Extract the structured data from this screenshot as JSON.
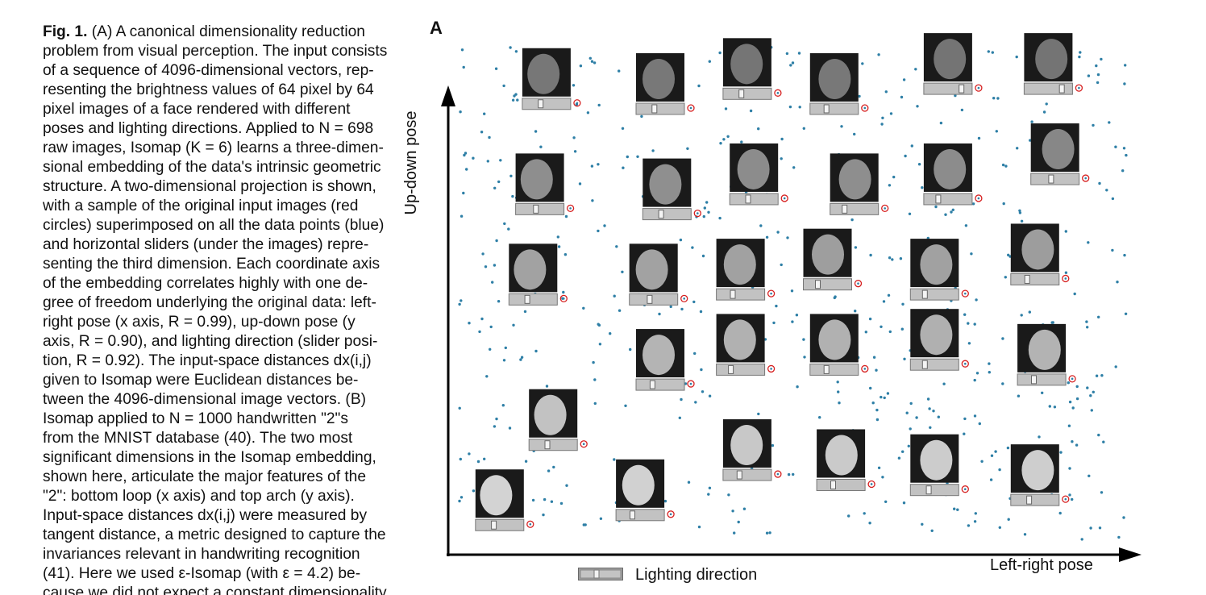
{
  "caption": {
    "lines": [
      "Fig. 1. (A) A canonical dimensionality reduction",
      "problem from visual perception. The input consists",
      "of a sequence of 4096-dimensional vectors, rep-",
      "resenting the brightness values of 64 pixel by 64",
      "pixel images of a face rendered with different",
      "poses and lighting directions. Applied to N = 698",
      "raw images, Isomap (K = 6) learns a three-dimen-",
      "sional embedding of the data's intrinsic geometric",
      "structure. A two-dimensional projection is shown,",
      "with a sample of the original input images (red",
      "circles) superimposed on all the data points (blue)",
      "and horizontal sliders (under the images) repre-",
      "senting the third dimension. Each coordinate axis",
      "of the embedding correlates highly with one de-",
      "gree of freedom underlying the original data: left-",
      "right pose (x axis, R = 0.99), up-down pose (y",
      "axis, R = 0.90), and lighting direction (slider posi-",
      "tion, R = 0.92). The input-space distances dx(i,j)",
      "given to Isomap were Euclidean distances be-",
      "tween the 4096-dimensional image vectors. (B)",
      "Isomap applied to N = 1000 handwritten \"2\"s",
      "from the MNIST database (40). The two most",
      "significant dimensions in the Isomap embedding,",
      "shown here, articulate the major features of the",
      "\"2\": bottom loop (x axis) and top arch (y axis).",
      "Input-space distances dx(i,j) were measured by",
      "tangent distance, a metric designed to capture the",
      "invariances relevant in handwriting recognition",
      "(41). Here we used ε-Isomap (with ε = 4.2) be-",
      "cause we did not expect a constant dimensionality"
    ]
  },
  "figure": {
    "panel_label": "A",
    "y_axis_label": "Up-down pose",
    "x_axis_label": "Left-right pose",
    "legend_label": "Lighting direction",
    "colors": {
      "point": "#2e7fa6",
      "circle": "#d62020",
      "axis": "#000000",
      "slider": "#9a9a9a"
    }
  },
  "chart_data": {
    "type": "scatter",
    "x_axis_label": "Left-right pose",
    "y_axis_label": "Up-down pose",
    "xlim": [
      0,
      1
    ],
    "ylim": [
      0,
      1
    ],
    "grid": false,
    "legend": "Lighting direction",
    "sample_images": [
      {
        "x": 0.13,
        "y": 0.92,
        "slider": 0.35
      },
      {
        "x": 0.3,
        "y": 0.91,
        "slider": 0.35
      },
      {
        "x": 0.43,
        "y": 0.94,
        "slider": 0.35
      },
      {
        "x": 0.56,
        "y": 0.91,
        "slider": 0.3
      },
      {
        "x": 0.73,
        "y": 0.95,
        "slider": 0.85
      },
      {
        "x": 0.88,
        "y": 0.95,
        "slider": 0.85
      },
      {
        "x": 0.12,
        "y": 0.71,
        "slider": 0.4
      },
      {
        "x": 0.31,
        "y": 0.7,
        "slider": 0.35
      },
      {
        "x": 0.44,
        "y": 0.73,
        "slider": 0.35
      },
      {
        "x": 0.59,
        "y": 0.71,
        "slider": 0.25
      },
      {
        "x": 0.73,
        "y": 0.73,
        "slider": 0.25
      },
      {
        "x": 0.89,
        "y": 0.77,
        "slider": 0.4
      },
      {
        "x": 0.11,
        "y": 0.53,
        "slider": 0.35
      },
      {
        "x": 0.29,
        "y": 0.53,
        "slider": 0.4
      },
      {
        "x": 0.42,
        "y": 0.54,
        "slider": 0.3
      },
      {
        "x": 0.55,
        "y": 0.56,
        "slider": 0.25
      },
      {
        "x": 0.71,
        "y": 0.54,
        "slider": 0.25
      },
      {
        "x": 0.86,
        "y": 0.57,
        "slider": 0.3
      },
      {
        "x": 0.3,
        "y": 0.36,
        "slider": 0.3
      },
      {
        "x": 0.42,
        "y": 0.39,
        "slider": 0.25
      },
      {
        "x": 0.56,
        "y": 0.39,
        "slider": 0.3
      },
      {
        "x": 0.71,
        "y": 0.4,
        "slider": 0.25
      },
      {
        "x": 0.87,
        "y": 0.37,
        "slider": 0.3
      },
      {
        "x": 0.14,
        "y": 0.24,
        "slider": 0.35
      },
      {
        "x": 0.43,
        "y": 0.18,
        "slider": 0.3
      },
      {
        "x": 0.57,
        "y": 0.16,
        "slider": 0.3
      },
      {
        "x": 0.71,
        "y": 0.15,
        "slider": 0.35
      },
      {
        "x": 0.86,
        "y": 0.13,
        "slider": 0.35
      },
      {
        "x": 0.06,
        "y": 0.08,
        "slider": 0.35
      },
      {
        "x": 0.27,
        "y": 0.1,
        "slider": 0.3
      }
    ]
  }
}
